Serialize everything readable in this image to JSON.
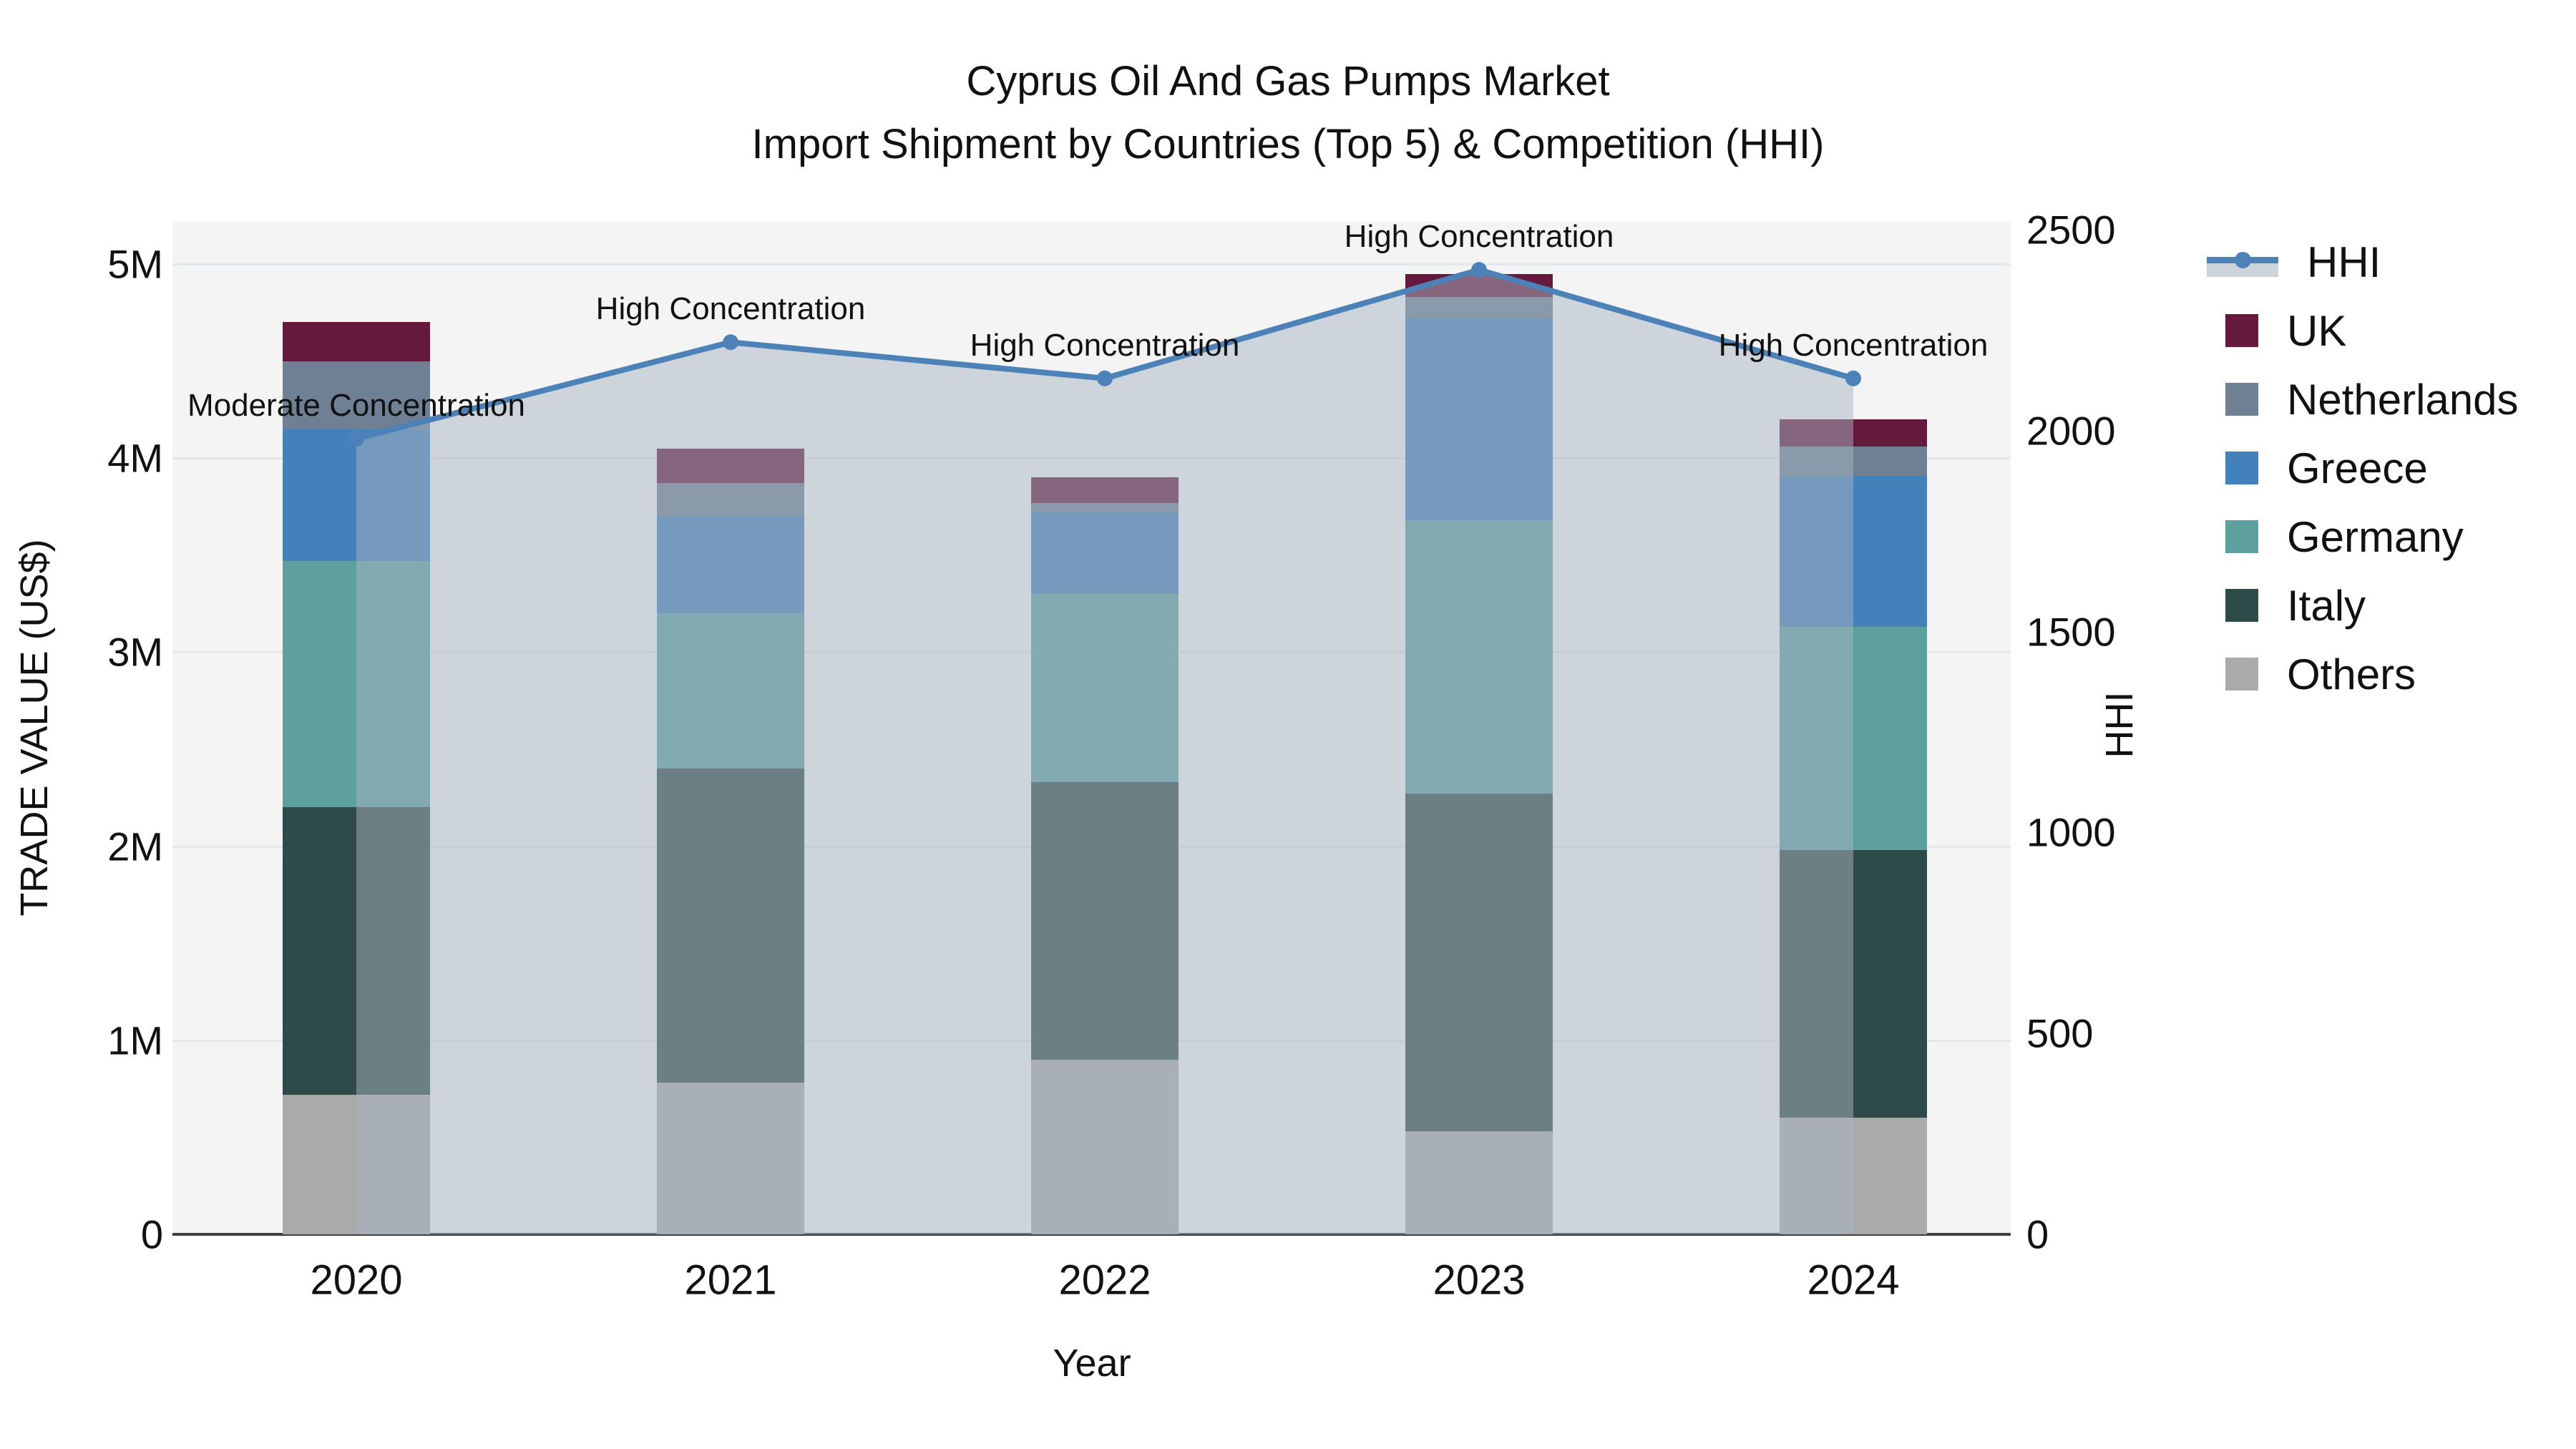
{
  "title": {
    "line1": "Cyprus Oil And Gas Pumps Market",
    "line2": "Import Shipment by Countries (Top 5) & Competition (HHI)"
  },
  "axes": {
    "x": {
      "label": "Year",
      "tick_labels": [
        "2020",
        "2021",
        "2022",
        "2023",
        "2024"
      ]
    },
    "y_left": {
      "label": "TRADE VALUE (US$)",
      "tick_labels": [
        "0",
        "1M",
        "2M",
        "3M",
        "4M",
        "5M"
      ],
      "tick_values": [
        0,
        1,
        2,
        3,
        4,
        5
      ]
    },
    "y_right": {
      "label": "HHI",
      "tick_labels": [
        "0",
        "500",
        "1000",
        "1500",
        "2000",
        "2500"
      ],
      "tick_values": [
        0,
        500,
        1000,
        1500,
        2000,
        2500
      ]
    }
  },
  "chart_data": {
    "type": "bar",
    "subtype": "stacked-bars-with-line-overlay",
    "title": "Cyprus Oil And Gas Pumps Market Import Shipment by Countries (Top 5) & Competition (HHI)",
    "xlabel": "Year",
    "ylabel_left": "TRADE VALUE (US$)",
    "ylabel_right": "HHI",
    "categories": [
      "2020",
      "2021",
      "2022",
      "2023",
      "2024"
    ],
    "bar_value_unit": "US$ millions",
    "y_left_range": [
      0,
      5.22
    ],
    "y_right_range": [
      0,
      2520
    ],
    "grid": true,
    "legend_position": "right",
    "series": [
      {
        "name": "UK",
        "color": "#65193C",
        "values": [
          0.2,
          0.18,
          0.13,
          0.12,
          0.14
        ]
      },
      {
        "name": "Netherlands",
        "color": "#6F8094",
        "values": [
          0.35,
          0.17,
          0.05,
          0.11,
          0.15
        ]
      },
      {
        "name": "Greece",
        "color": "#4381BA",
        "values": [
          0.68,
          0.5,
          0.42,
          1.04,
          0.78
        ]
      },
      {
        "name": "Germany",
        "color": "#5DA09E",
        "values": [
          1.27,
          0.8,
          0.97,
          1.41,
          1.15
        ]
      },
      {
        "name": "Italy",
        "color": "#2E4B49",
        "values": [
          1.48,
          1.62,
          1.43,
          1.74,
          1.38
        ]
      },
      {
        "name": "Others",
        "color": "#A9ABAB",
        "values": [
          0.72,
          0.78,
          0.9,
          0.53,
          0.6
        ]
      }
    ],
    "bar_totals": [
      4.7,
      4.05,
      3.9,
      4.95,
      4.2
    ],
    "stack_order_bottom_to_top": [
      "Others",
      "Italy",
      "Germany",
      "Greece",
      "Netherlands",
      "UK"
    ],
    "line_series": {
      "name": "HHI",
      "axis": "y_right",
      "color": "#4D82B8",
      "area_fill_color": "rgba(168,180,194,0.5)",
      "values": [
        1980,
        2220,
        2130,
        2400,
        2130
      ]
    },
    "annotations": [
      {
        "x": "2020",
        "text": "Moderate Concentration"
      },
      {
        "x": "2021",
        "text": "High Concentration"
      },
      {
        "x": "2022",
        "text": "High Concentration"
      },
      {
        "x": "2023",
        "text": "High Concentration"
      },
      {
        "x": "2024",
        "text": "High Concentration"
      }
    ]
  },
  "legend": {
    "items": [
      {
        "label": "HHI",
        "type": "line",
        "color": "#4D82B8"
      },
      {
        "label": "UK",
        "type": "swatch",
        "color": "#65193C"
      },
      {
        "label": "Netherlands",
        "type": "swatch",
        "color": "#6F8094"
      },
      {
        "label": "Greece",
        "type": "swatch",
        "color": "#4381BA"
      },
      {
        "label": "Germany",
        "type": "swatch",
        "color": "#5DA09E"
      },
      {
        "label": "Italy",
        "type": "swatch",
        "color": "#2E4B49"
      },
      {
        "label": "Others",
        "type": "swatch",
        "color": "#A9ABAB"
      }
    ]
  },
  "colors": {
    "plot_background": "#f4f4f4",
    "page_background": "#ffffff",
    "gridline": "#e4e7ea",
    "axis_line": "#3f3f3f",
    "text": "#111111",
    "hhi_line": "#4D82B8",
    "hhi_area_fill": "rgba(168,180,194,0.5)"
  }
}
